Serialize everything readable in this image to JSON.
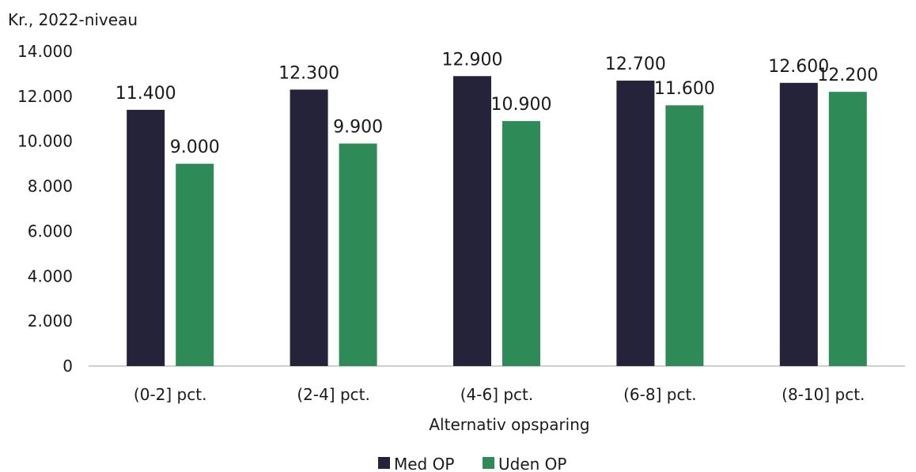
{
  "chart_data": {
    "type": "bar",
    "ylabel": "Kr., 2022-niveau",
    "xlabel": "Alternativ opsparing",
    "categories": [
      "(0-2] pct.",
      "(2-4] pct.",
      "(4-6] pct.",
      "(6-8] pct.",
      "(8-10] pct."
    ],
    "series": [
      {
        "name": "Med OP",
        "color": "#24233a",
        "values": [
          11400,
          12300,
          12900,
          12700,
          12600
        ],
        "labels": [
          "11.400",
          "12.300",
          "12.900",
          "12.700",
          "12.600"
        ]
      },
      {
        "name": "Uden OP",
        "color": "#2e8b57",
        "values": [
          9000,
          9900,
          10900,
          11600,
          12200
        ],
        "labels": [
          "9.000",
          "9.900",
          "10.900",
          "11.600",
          "12.200"
        ]
      }
    ],
    "ylim": [
      0,
      14000
    ],
    "yticks": [
      0,
      2000,
      4000,
      6000,
      8000,
      10000,
      12000,
      14000
    ],
    "ytick_labels": [
      "0",
      "2.000",
      "4.000",
      "6.000",
      "8.000",
      "10.000",
      "12.000",
      "14.000"
    ],
    "grid": false,
    "legend_position": "bottom-center"
  }
}
